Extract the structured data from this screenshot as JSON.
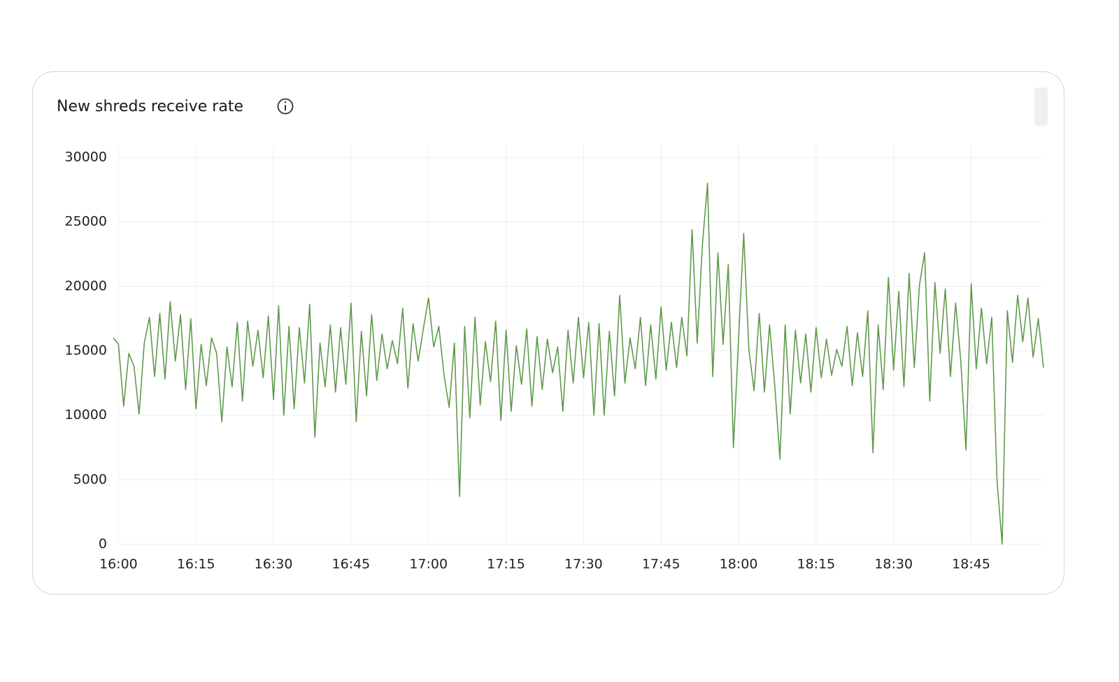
{
  "chart_data": {
    "type": "line",
    "title": "New shreds receive rate",
    "x": [
      -1,
      0,
      1,
      2,
      3,
      4,
      5,
      6,
      7,
      8,
      9,
      10,
      11,
      12,
      13,
      14,
      15,
      16,
      17,
      18,
      19,
      20,
      21,
      22,
      23,
      24,
      25,
      26,
      27,
      28,
      29,
      30,
      31,
      32,
      33,
      34,
      35,
      36,
      37,
      38,
      39,
      40,
      41,
      42,
      43,
      44,
      45,
      46,
      47,
      48,
      49,
      50,
      51,
      52,
      53,
      54,
      55,
      56,
      57,
      58,
      59,
      60,
      61,
      62,
      63,
      64,
      65,
      66,
      67,
      68,
      69,
      70,
      71,
      72,
      73,
      74,
      75,
      76,
      77,
      78,
      79,
      80,
      81,
      82,
      83,
      84,
      85,
      86,
      87,
      88,
      89,
      90,
      91,
      92,
      93,
      94,
      95,
      96,
      97,
      98,
      99,
      100,
      101,
      102,
      103,
      104,
      105,
      106,
      107,
      108,
      109,
      110,
      111,
      112,
      113,
      114,
      115,
      116,
      117,
      118,
      119,
      120,
      121,
      122,
      123,
      124,
      125,
      126,
      127,
      128,
      129,
      130,
      131,
      132,
      133,
      134,
      135,
      136,
      137,
      138,
      139,
      140,
      141,
      142,
      143,
      144,
      145,
      146,
      147,
      148,
      149,
      150,
      151,
      152,
      153,
      154,
      155,
      156,
      157,
      158,
      159,
      160,
      161,
      162,
      163,
      164,
      165,
      166,
      167,
      168,
      169,
      170,
      171,
      172,
      173,
      174,
      175,
      176,
      177,
      178,
      179
    ],
    "series": [
      {
        "name": "New shreds receive rate",
        "color": "#5f9a4c",
        "values": [
          16000,
          15500,
          10700,
          14800,
          13800,
          10100,
          15600,
          17600,
          13000,
          17900,
          12800,
          18800,
          14200,
          17800,
          12000,
          17500,
          10500,
          15500,
          12300,
          16000,
          14800,
          9500,
          15300,
          12200,
          17200,
          11100,
          17300,
          13800,
          16600,
          12900,
          17700,
          11200,
          18500,
          10000,
          16900,
          10500,
          16800,
          12500,
          18600,
          8300,
          15600,
          12200,
          17000,
          11800,
          16800,
          12400,
          18700,
          9500,
          16500,
          11500,
          17800,
          12700,
          16300,
          13600,
          15800,
          14000,
          18300,
          12100,
          17100,
          14200,
          16700,
          19100,
          15300,
          16900,
          13100,
          10600,
          15600,
          3700,
          16900,
          9800,
          17600,
          10800,
          15700,
          12600,
          17300,
          9600,
          16600,
          10300,
          15400,
          12400,
          16700,
          10700,
          16100,
          12000,
          15900,
          13300,
          15300,
          10300,
          16600,
          12500,
          17600,
          12900,
          17200,
          10000,
          17100,
          10000,
          16500,
          11500,
          19300,
          12500,
          16000,
          13600,
          17600,
          12300,
          17000,
          12800,
          18400,
          13500,
          17200,
          13700,
          17600,
          14600,
          24400,
          15600,
          23200,
          28000,
          13000,
          22600,
          15500,
          21700,
          7500,
          16000,
          24100,
          15100,
          11900,
          17900,
          11800,
          17000,
          12300,
          6600,
          17000,
          10100,
          16600,
          12500,
          16300,
          11800,
          16800,
          12900,
          15900,
          13100,
          15100,
          13800,
          16900,
          12300,
          16400,
          13000,
          18100,
          7100,
          17000,
          12000,
          20700,
          13500,
          19600,
          12200,
          21000,
          13700,
          20100,
          22600,
          11100,
          20300,
          14800,
          19800,
          13000,
          18700,
          14200,
          7300,
          20200,
          13600,
          18300,
          14000,
          17600,
          5000,
          0,
          18100,
          14100,
          19300,
          15700,
          19100,
          14500,
          17500,
          13700
        ]
      }
    ],
    "xlim": [
      -1,
      179
    ],
    "xticks": [
      {
        "value": 0,
        "label": "16:00"
      },
      {
        "value": 15,
        "label": "16:15"
      },
      {
        "value": 30,
        "label": "16:30"
      },
      {
        "value": 45,
        "label": "16:45"
      },
      {
        "value": 60,
        "label": "17:00"
      },
      {
        "value": 75,
        "label": "17:15"
      },
      {
        "value": 90,
        "label": "17:30"
      },
      {
        "value": 105,
        "label": "17:45"
      },
      {
        "value": 120,
        "label": "18:00"
      },
      {
        "value": 135,
        "label": "18:15"
      },
      {
        "value": 150,
        "label": "18:30"
      },
      {
        "value": 165,
        "label": "18:45"
      }
    ],
    "ylim": [
      0,
      30000
    ],
    "yticks": [
      0,
      5000,
      10000,
      15000,
      20000,
      25000,
      30000
    ],
    "grid": true
  }
}
